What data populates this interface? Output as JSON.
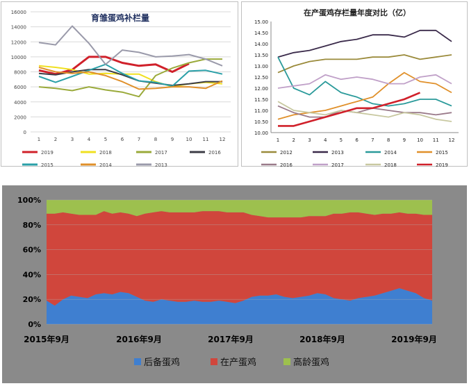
{
  "chart_data": [
    {
      "type": "line",
      "title": "育雏蛋鸡补栏量",
      "xlabel": "",
      "ylabel": "",
      "x": [
        1,
        2,
        3,
        4,
        5,
        6,
        7,
        8,
        9,
        10,
        11,
        12
      ],
      "ylim": [
        0,
        16000
      ],
      "yticks": [
        0,
        2000,
        4000,
        6000,
        8000,
        10000,
        12000,
        14000,
        16000
      ],
      "grid": true,
      "legend": "bottom",
      "series": [
        {
          "name": "2019",
          "color": "#d0202a",
          "values": [
            8200,
            7700,
            8300,
            10000,
            10000,
            9200,
            8800,
            9000,
            8000,
            9100,
            null,
            null
          ]
        },
        {
          "name": "2018",
          "color": "#f0e020",
          "values": [
            8800,
            8600,
            8300,
            7700,
            7800,
            7700,
            7700,
            6700,
            6000,
            6400,
            6600,
            6400
          ]
        },
        {
          "name": "2017",
          "color": "#9aaa3a",
          "values": [
            6000,
            5800,
            5500,
            6000,
            5600,
            5300,
            4700,
            7500,
            8500,
            9200,
            9700,
            9700
          ]
        },
        {
          "name": "2016",
          "color": "#3c3c46",
          "values": [
            7800,
            7600,
            8000,
            8300,
            8300,
            7600,
            6800,
            6500,
            6200,
            6400,
            6700,
            6700
          ]
        },
        {
          "name": "2015",
          "color": "#2aa0a8",
          "values": [
            7400,
            6600,
            7400,
            8200,
            9000,
            7800,
            6800,
            6600,
            6100,
            8100,
            8200,
            7700
          ]
        },
        {
          "name": "2014",
          "color": "#e0902a",
          "values": [
            8600,
            8000,
            7800,
            8000,
            7500,
            6700,
            5700,
            5800,
            6000,
            6000,
            5800,
            6800
          ]
        },
        {
          "name": "2013",
          "color": "#9a9aaa",
          "values": [
            11900,
            11600,
            14100,
            11800,
            9000,
            10900,
            10600,
            10000,
            10100,
            10300,
            9700,
            8800
          ]
        }
      ]
    },
    {
      "type": "line",
      "title": "在产蛋鸡存栏量年度对比（亿）",
      "xlabel": "",
      "ylabel": "",
      "x": [
        1,
        2,
        3,
        4,
        5,
        6,
        7,
        8,
        9,
        10,
        11,
        12
      ],
      "ylim": [
        10.0,
        15.0
      ],
      "yticks": [
        "10.00",
        "10.50",
        "11.00",
        "11.50",
        "12.00",
        "12.50",
        "13.00",
        "13.50",
        "14.00",
        "14.50",
        "15.00"
      ],
      "grid": false,
      "legend": "bottom",
      "series": [
        {
          "name": "2012",
          "color": "#9a8a3a",
          "values": [
            12.7,
            13.0,
            13.2,
            13.3,
            13.3,
            13.3,
            13.4,
            13.4,
            13.5,
            13.3,
            13.4,
            13.5
          ]
        },
        {
          "name": "2013",
          "color": "#3a2a4a",
          "values": [
            13.4,
            13.6,
            13.7,
            13.9,
            14.1,
            14.2,
            14.4,
            14.4,
            14.3,
            14.6,
            14.6,
            14.1
          ]
        },
        {
          "name": "2014",
          "color": "#2a9a9a",
          "values": [
            13.4,
            12.0,
            11.7,
            12.3,
            11.8,
            11.6,
            11.3,
            11.2,
            11.3,
            11.5,
            11.5,
            11.2
          ]
        },
        {
          "name": "2015",
          "color": "#e0902a",
          "values": [
            10.6,
            10.8,
            10.9,
            11.0,
            11.2,
            11.4,
            11.6,
            12.2,
            12.7,
            12.3,
            12.2,
            11.8
          ]
        },
        {
          "name": "2016",
          "color": "#9a7a8a",
          "values": [
            11.2,
            10.9,
            10.7,
            10.7,
            11.0,
            10.9,
            11.1,
            11.0,
            10.9,
            10.9,
            10.8,
            10.9
          ]
        },
        {
          "name": "2017",
          "color": "#c0a0c8",
          "values": [
            12.0,
            12.1,
            12.2,
            12.6,
            12.4,
            12.5,
            12.4,
            12.2,
            12.2,
            12.5,
            12.6,
            12.2
          ]
        },
        {
          "name": "2018",
          "color": "#c8c8a0",
          "values": [
            11.4,
            11.0,
            10.9,
            10.8,
            11.0,
            10.9,
            10.8,
            10.7,
            10.9,
            10.8,
            10.6,
            10.5
          ]
        },
        {
          "name": "2019",
          "color": "#d0202a",
          "values": [
            10.3,
            10.3,
            10.5,
            10.7,
            10.9,
            11.1,
            11.1,
            11.3,
            11.5,
            11.8,
            null,
            null
          ]
        }
      ]
    },
    {
      "type": "area",
      "stacked": true,
      "title": "",
      "xlabel": "",
      "ylabel": "",
      "ylim": [
        0,
        100
      ],
      "yticks": [
        "0%",
        "20%",
        "40%",
        "60%",
        "80%",
        "100%"
      ],
      "x_ticklabels": [
        "2015年9月",
        "2016年9月",
        "2017年9月",
        "2018年9月",
        "2019年9月"
      ],
      "grid": true,
      "legend": "bottom",
      "series": [
        {
          "name": "后备蛋鸡",
          "color": "#3f7fd0",
          "values": [
            19,
            15,
            20,
            23,
            22,
            21,
            24,
            25,
            24,
            26,
            25,
            22,
            19,
            18,
            20,
            19,
            18,
            18,
            19,
            18,
            18,
            19,
            18,
            17,
            19,
            22,
            23,
            23,
            24,
            22,
            21,
            22,
            23,
            25,
            24,
            21,
            20,
            19,
            21,
            22,
            23,
            25,
            27,
            29,
            27,
            25,
            21,
            19
          ]
        },
        {
          "name": "在产蛋鸡",
          "color": "#d0463c",
          "values": [
            70,
            74,
            70,
            66,
            66,
            67,
            64,
            66,
            65,
            64,
            64,
            65,
            70,
            72,
            71,
            71,
            72,
            72,
            71,
            73,
            73,
            72,
            72,
            73,
            71,
            66,
            64,
            63,
            62,
            64,
            65,
            64,
            64,
            62,
            63,
            68,
            69,
            71,
            69,
            67,
            65,
            64,
            62,
            61,
            62,
            64,
            67,
            69
          ]
        },
        {
          "name": "高龄蛋鸡",
          "color": "#9dc04e",
          "values": [
            11,
            11,
            10,
            11,
            12,
            12,
            12,
            9,
            11,
            10,
            11,
            13,
            11,
            10,
            9,
            10,
            10,
            10,
            10,
            9,
            9,
            9,
            10,
            10,
            10,
            12,
            13,
            14,
            14,
            14,
            14,
            14,
            13,
            13,
            13,
            11,
            11,
            10,
            10,
            11,
            12,
            11,
            11,
            10,
            11,
            11,
            12,
            12
          ]
        }
      ]
    }
  ]
}
